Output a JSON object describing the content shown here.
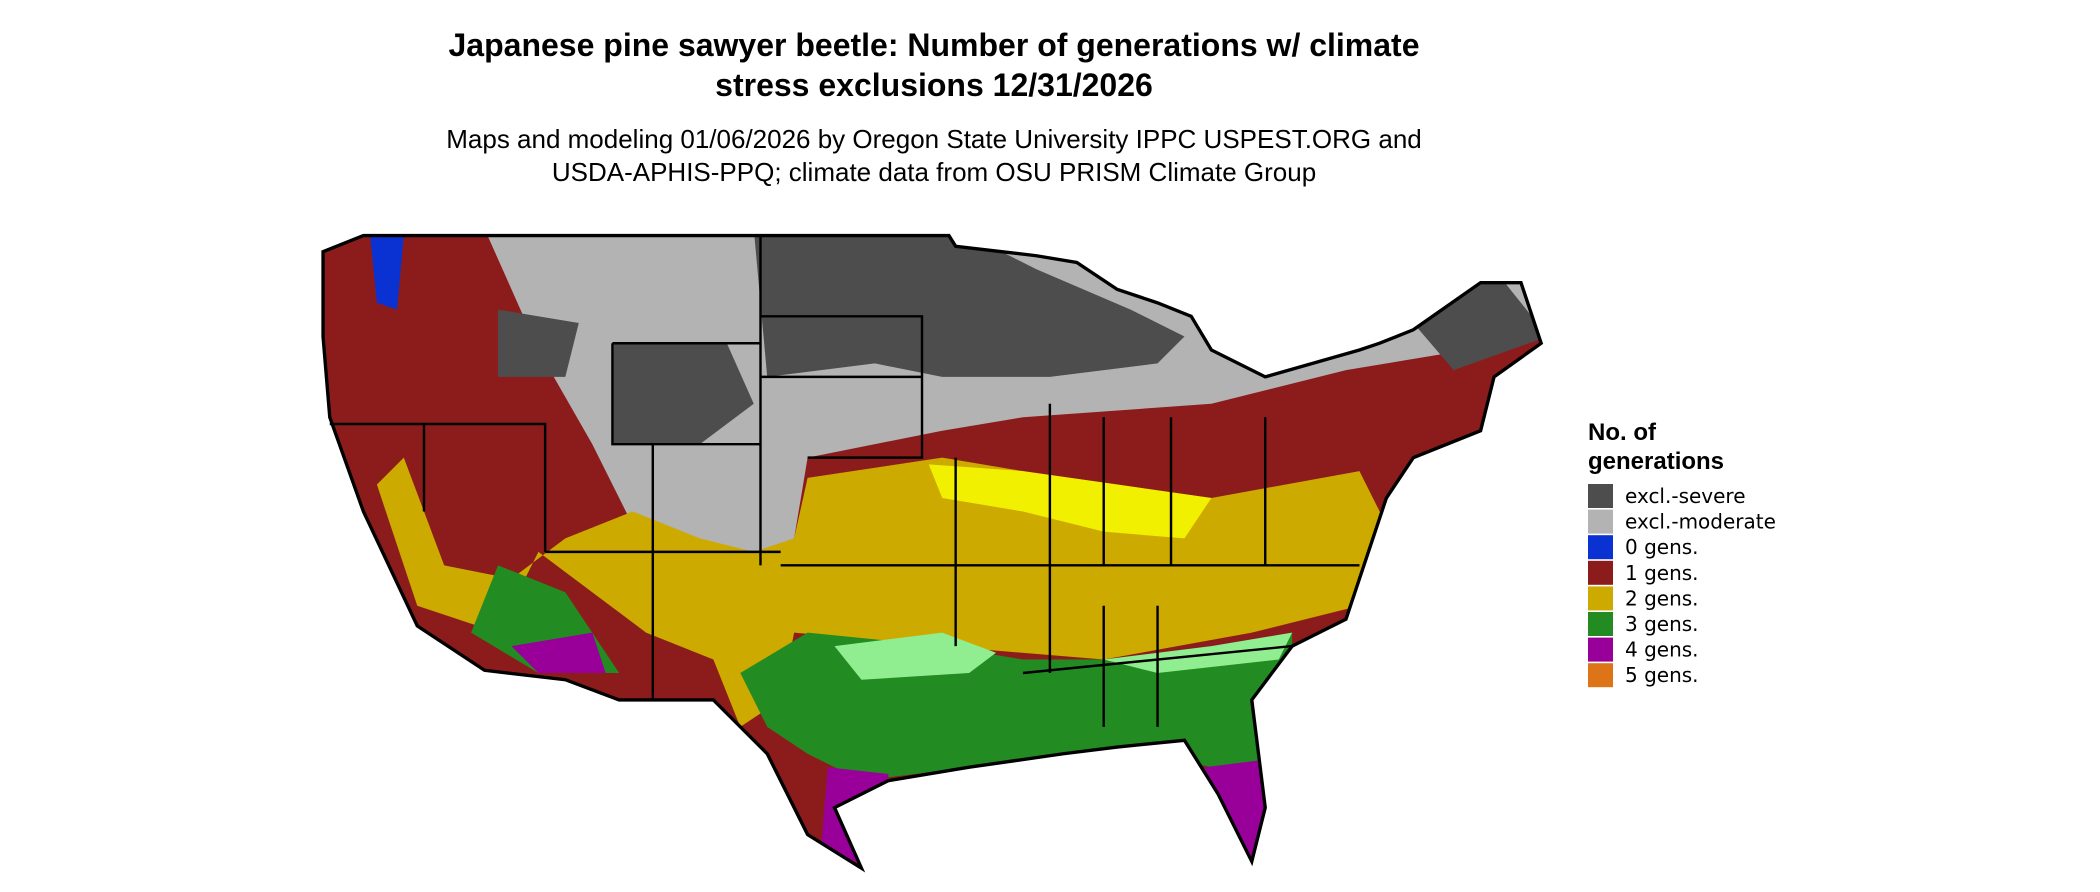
{
  "header": {
    "title_lines": [
      "Japanese pine sawyer beetle: Number of generations w/ climate",
      "stress exclusions 12/31/2026"
    ],
    "subtitle_lines": [
      "Maps and modeling 01/06/2026 by Oregon State University IPPC USPEST.ORG and",
      "USDA-APHIS-PPQ; climate data from OSU PRISM Climate Group"
    ]
  },
  "legend": {
    "title_lines": [
      "No. of",
      "generations"
    ],
    "items": [
      {
        "label": "excl.-severe",
        "color": "#4d4d4d"
      },
      {
        "label": "excl.-moderate",
        "color": "#b3b3b3"
      },
      {
        "label": "0 gens.",
        "color": "#0a32d2"
      },
      {
        "label": "1 gens.",
        "color": "#8c1c1c"
      },
      {
        "label": "2 gens.",
        "color": "#cdaa00"
      },
      {
        "label": "3 gens.",
        "color": "#228b22"
      },
      {
        "label": "4 gens.",
        "color": "#990099"
      },
      {
        "label": "5 gens.",
        "color": "#dd7418"
      }
    ]
  }
}
